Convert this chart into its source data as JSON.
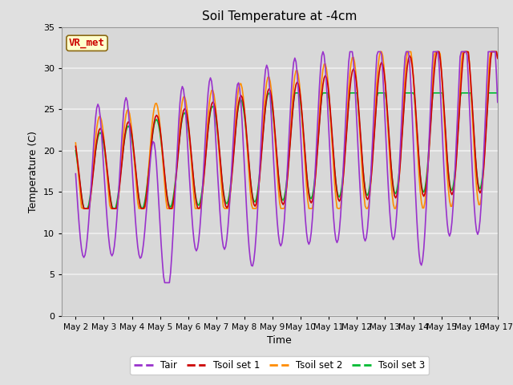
{
  "title": "Soil Temperature at -4cm",
  "xlabel": "Time",
  "ylabel": "Temperature (C)",
  "ylim": [
    0,
    35
  ],
  "xlim_days": [
    1.5,
    17.0
  ],
  "background_color": "#e0e0e0",
  "plot_bg_color": "#d8d8d8",
  "grid_color": "#f0f0f0",
  "label_box_text": "VR_met",
  "label_box_facecolor": "#ffffcc",
  "label_box_edgecolor": "#8b6914",
  "label_box_textcolor": "#cc0000",
  "colors": {
    "Tair": "#9932cc",
    "Tsoil1": "#cc0000",
    "Tsoil2": "#ff8c00",
    "Tsoil3": "#00bb33"
  },
  "xtick_labels": [
    "May 2",
    "May 3",
    "May 4",
    "May 5",
    "May 6",
    "May 7",
    "May 8",
    "May 9",
    "May 10",
    "May 11",
    "May 12",
    "May 13",
    "May 14",
    "May 15",
    "May 16",
    "May 17"
  ],
  "xtick_positions": [
    2,
    3,
    4,
    5,
    6,
    7,
    8,
    9,
    10,
    11,
    12,
    13,
    14,
    15,
    16,
    17
  ],
  "ytick_positions": [
    0,
    5,
    10,
    15,
    20,
    25,
    30,
    35
  ]
}
